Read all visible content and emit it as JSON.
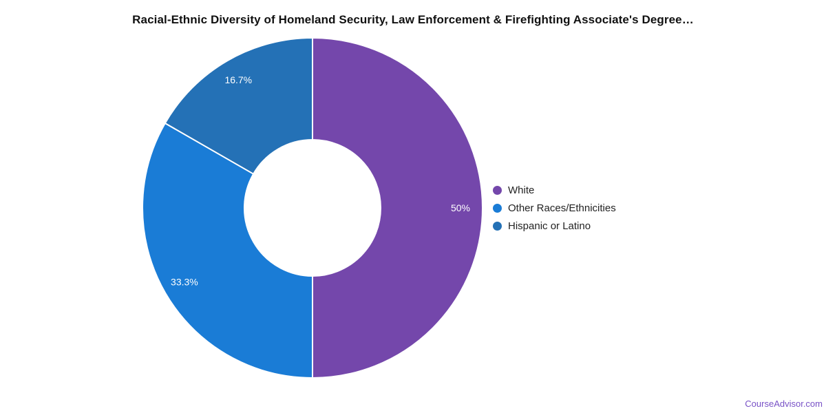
{
  "page": {
    "footer_link": "CourseAdvisor.com",
    "footer_link_color": "#7851C6",
    "background_color": "#ffffff"
  },
  "chart_data": {
    "type": "pie",
    "subtype": "donut",
    "title": "Racial-Ethnic Diversity of Homeland Security, Law Enforcement & Firefighting Associate's Degree…",
    "donut_hole_ratio": 0.4,
    "legend_position": "right",
    "rotation": "clockwise-from-top",
    "slice_label_color": "#ffffff",
    "separator_color": "#ffffff",
    "slices": [
      {
        "label": "White",
        "value": 50,
        "display_label": "50%",
        "color": "#7447AB"
      },
      {
        "label": "Other Races/Ethnicities",
        "value": 33.3,
        "display_label": "33.3%",
        "color": "#1A7CD6"
      },
      {
        "label": "Hispanic or Latino",
        "value": 16.7,
        "display_label": "16.7%",
        "color": "#2471B6"
      }
    ]
  }
}
